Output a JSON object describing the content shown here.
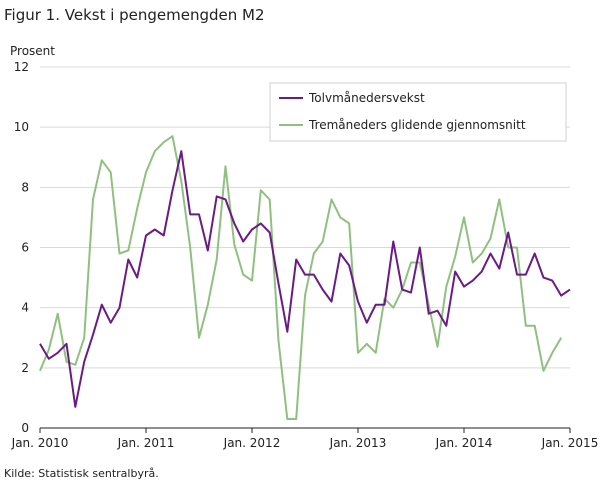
{
  "title": "Figur 1. Vekst i pengemengden M2",
  "source": "Kilde: Statistisk sentralbyrå.",
  "chart_data": {
    "type": "line",
    "ylabel": "Prosent",
    "ylim": [
      0,
      12
    ],
    "yticks": [
      0,
      2,
      4,
      6,
      8,
      10,
      12
    ],
    "xticks": [
      {
        "label": "Jan. 2010",
        "t": 0
      },
      {
        "label": "Jan. 2011",
        "t": 12
      },
      {
        "label": "Jan. 2012",
        "t": 24
      },
      {
        "label": "Jan. 2013",
        "t": 36
      },
      {
        "label": "Jan. 2014",
        "t": 48
      },
      {
        "label": "Jan. 2015",
        "t": 60
      }
    ],
    "x_start": "Jan. 2010",
    "legend_position": "top-right",
    "grid": "horizontal",
    "series": [
      {
        "name": "Tolvmånedersvekst",
        "color": "#6a1b84",
        "values": [
          2.8,
          2.3,
          2.5,
          2.8,
          0.7,
          2.2,
          3.1,
          4.1,
          3.5,
          4.0,
          5.6,
          5.0,
          6.4,
          6.6,
          6.4,
          7.9,
          9.2,
          7.1,
          7.1,
          5.9,
          7.7,
          7.6,
          6.8,
          6.2,
          6.6,
          6.8,
          6.5,
          4.8,
          3.2,
          5.6,
          5.1,
          5.1,
          4.6,
          4.2,
          5.8,
          5.4,
          4.2,
          3.5,
          4.1,
          4.1,
          6.2,
          4.6,
          4.5,
          6.0,
          3.8,
          3.9,
          3.4,
          5.2,
          4.7,
          4.9,
          5.2,
          5.8,
          5.3,
          6.5,
          5.1,
          5.1,
          5.8,
          5.0,
          4.9,
          4.4,
          4.6
        ]
      },
      {
        "name": "Tremåneders glidende gjennomsnitt",
        "color": "#90c080",
        "values": [
          1.9,
          2.6,
          3.8,
          2.2,
          2.1,
          3.0,
          7.6,
          8.9,
          8.5,
          5.8,
          5.9,
          7.3,
          8.5,
          9.2,
          9.5,
          9.7,
          8.2,
          6.0,
          3.0,
          4.1,
          5.6,
          8.7,
          6.1,
          5.1,
          4.9,
          7.9,
          7.6,
          2.9,
          0.3,
          0.3,
          4.4,
          5.8,
          6.2,
          7.6,
          7.0,
          6.8,
          2.5,
          2.8,
          2.5,
          4.3,
          4.0,
          4.6,
          5.5,
          5.5,
          4.1,
          2.7,
          4.7,
          5.7,
          7.0,
          5.5,
          5.8,
          6.3,
          7.6,
          6.0,
          6.0,
          3.4,
          3.4,
          1.9,
          2.5,
          3.0
        ]
      }
    ]
  }
}
